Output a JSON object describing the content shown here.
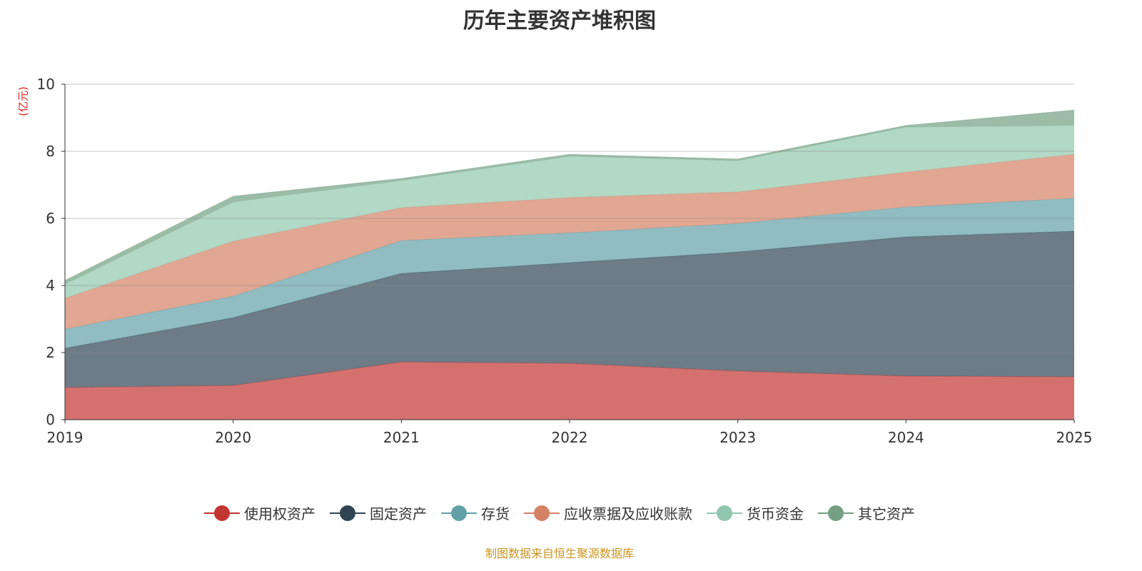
{
  "chart_data": {
    "type": "area",
    "stacked": true,
    "title": "历年主要资产堆积图",
    "ylabel": "(亿元)",
    "xlabel": "",
    "x": [
      "2019",
      "2020",
      "2021",
      "2022",
      "2023",
      "2024",
      "2025"
    ],
    "ylim": [
      0,
      10
    ],
    "yticks": [
      0,
      2,
      4,
      6,
      8,
      10
    ],
    "grid": true,
    "legend_position": "bottom",
    "series": [
      {
        "name": "使用权资产",
        "color": "#c23531",
        "values": [
          0.96,
          1.02,
          1.72,
          1.68,
          1.45,
          1.3,
          1.28
        ]
      },
      {
        "name": "固定资产",
        "color": "#2f4554",
        "values": [
          1.17,
          2.02,
          2.64,
          3.0,
          3.55,
          4.15,
          4.34
        ]
      },
      {
        "name": "存货",
        "color": "#61a0a8",
        "values": [
          0.57,
          0.64,
          0.98,
          0.89,
          0.85,
          0.89,
          0.98
        ]
      },
      {
        "name": "应收票据及应收账款",
        "color": "#d48265",
        "values": [
          0.92,
          1.64,
          0.98,
          1.05,
          0.94,
          1.04,
          1.31
        ]
      },
      {
        "name": "货币资金",
        "color": "#91c7ae",
        "values": [
          0.42,
          1.17,
          0.81,
          1.23,
          0.93,
          1.34,
          0.86
        ]
      },
      {
        "name": "其它资产",
        "color": "#749f83",
        "values": [
          0.11,
          0.17,
          0.06,
          0.06,
          0.05,
          0.05,
          0.46
        ]
      }
    ]
  },
  "footer": "制图数据来自恒生聚源数据库"
}
